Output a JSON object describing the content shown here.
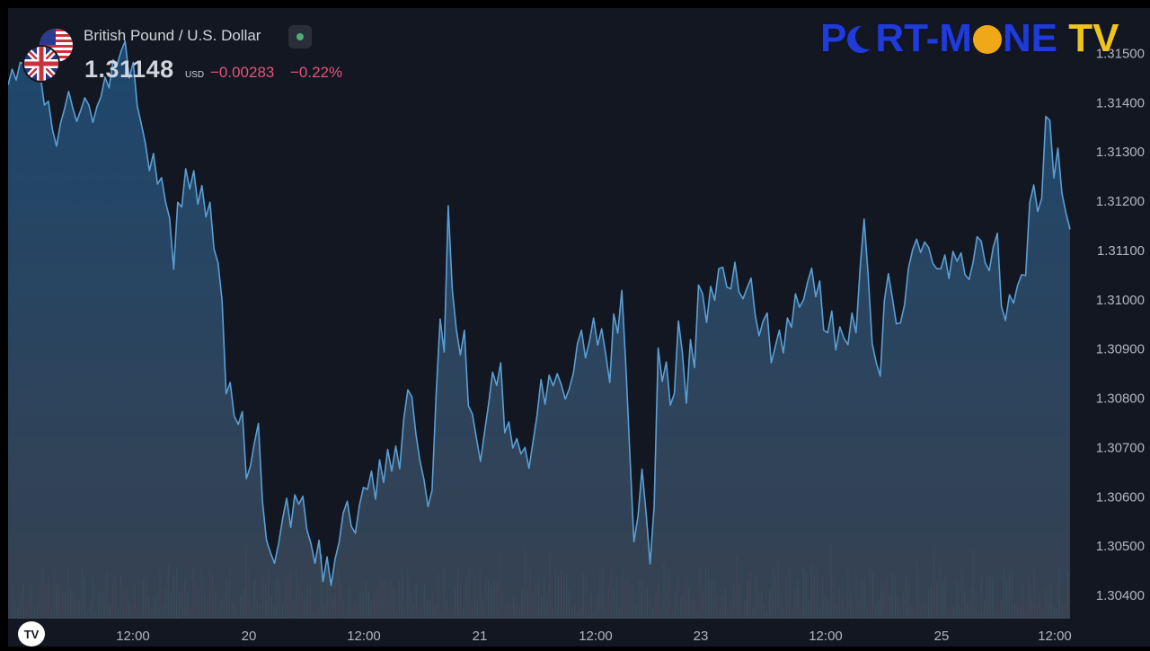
{
  "header": {
    "symbol_name": "British Pound / U.S. Dollar",
    "price": "1.31148",
    "currency": "USD",
    "change": "−0.00283",
    "change_pct": "−0.22%",
    "flags": [
      "us-flag-icon",
      "uk-flag-icon"
    ]
  },
  "brand": {
    "text_pre": "P",
    "text_mid": "RT-M",
    "text_post": "NE",
    "text_tv": "TV",
    "colors": {
      "main": "#1f3bd8",
      "accent": "#f0c418"
    }
  },
  "chart_data": {
    "type": "area",
    "title": "",
    "xlabel": "",
    "ylabel": "",
    "ylim": [
      1.303526,
      1.315921
    ],
    "y_ticks": [
      "1.31500",
      "1.31400",
      "1.31300",
      "1.31200",
      "1.31100",
      "1.31000",
      "1.30900",
      "1.30800",
      "1.30700",
      "1.30600",
      "1.30500",
      "1.30400"
    ],
    "x_ticks": [
      "12:00",
      "20",
      "12:00",
      "21",
      "12:00",
      "23",
      "12:00",
      "25",
      "12:00"
    ],
    "colors": {
      "line": "#5a9fd4",
      "fill_top": "#1e4a72",
      "volume_up": "#3d8f7a",
      "volume_down": "#a0445c"
    },
    "grid": false,
    "series": [
      {
        "values": [
          1.31436,
          1.31468,
          1.31446,
          1.31482,
          1.31478,
          1.31459,
          1.31475,
          1.31467,
          1.31454,
          1.31395,
          1.31403,
          1.31345,
          1.31312,
          1.31358,
          1.31388,
          1.31423,
          1.3139,
          1.31362,
          1.31385,
          1.3141,
          1.31395,
          1.3136,
          1.31392,
          1.31412,
          1.31452,
          1.3143,
          1.31487,
          1.31477,
          1.31505,
          1.31525,
          1.3145,
          1.31482,
          1.31393,
          1.31357,
          1.31318,
          1.31262,
          1.31297,
          1.31235,
          1.31248,
          1.31198,
          1.31166,
          1.31062,
          1.31198,
          1.31188,
          1.31266,
          1.31225,
          1.31262,
          1.31194,
          1.31232,
          1.31168,
          1.31198,
          1.31103,
          1.31075,
          1.30998,
          1.30809,
          1.30832,
          1.30764,
          1.30747,
          1.30773,
          1.30637,
          1.30662,
          1.3071,
          1.30749,
          1.30591,
          1.30512,
          1.30486,
          1.30465,
          1.30505,
          1.30556,
          1.30597,
          1.30538,
          1.30604,
          1.30585,
          1.30601,
          1.30533,
          1.30505,
          1.30465,
          1.30512,
          1.30428,
          1.30478,
          1.3042,
          1.30474,
          1.30508,
          1.30567,
          1.30591,
          1.3054,
          1.30526,
          1.30582,
          1.30619,
          1.30615,
          1.30652,
          1.30595,
          1.30675,
          1.30629,
          1.30696,
          1.30652,
          1.30703,
          1.30657,
          1.30758,
          1.30817,
          1.30803,
          1.30728,
          1.30673,
          1.30635,
          1.3058,
          1.30613,
          1.30805,
          1.30961,
          1.30894,
          1.31191,
          1.31021,
          1.3094,
          1.30888,
          1.30938,
          1.30785,
          1.30768,
          1.30719,
          1.30672,
          1.30731,
          1.30788,
          1.30853,
          1.30826,
          1.30872,
          1.3073,
          1.30752,
          1.30699,
          1.30718,
          1.30687,
          1.307,
          1.30658,
          1.30712,
          1.30766,
          1.30838,
          1.30788,
          1.30847,
          1.30825,
          1.3085,
          1.30828,
          1.30798,
          1.3082,
          1.30851,
          1.30911,
          1.30938,
          1.30882,
          1.30917,
          1.30963,
          1.30908,
          1.30941,
          1.3089,
          1.30832,
          1.30971,
          1.30932,
          1.31019,
          1.30866,
          1.30685,
          1.30509,
          1.3056,
          1.30656,
          1.30568,
          1.30464,
          1.30581,
          1.30902,
          1.30834,
          1.30874,
          1.30786,
          1.3081,
          1.30957,
          1.30893,
          1.3079,
          1.30919,
          1.30862,
          1.3103,
          1.31012,
          1.30954,
          1.31027,
          1.30999,
          1.31063,
          1.31066,
          1.31026,
          1.31022,
          1.31076,
          1.31016,
          1.31002,
          1.31024,
          1.31044,
          1.30971,
          1.30927,
          1.30957,
          1.30973,
          1.30872,
          1.30905,
          1.30938,
          1.30892,
          1.30963,
          1.30944,
          1.31012,
          1.30985,
          1.31,
          1.31036,
          1.31064,
          1.31006,
          1.31038,
          1.30938,
          1.30933,
          1.30977,
          1.30898,
          1.30945,
          1.30922,
          1.30909,
          1.30973,
          1.30933,
          1.31063,
          1.31164,
          1.3105,
          1.30911,
          1.30872,
          1.30845,
          1.30998,
          1.31053,
          1.31003,
          1.30951,
          1.30953,
          1.30989,
          1.31064,
          1.31101,
          1.31123,
          1.31096,
          1.31117,
          1.31106,
          1.31074,
          1.31063,
          1.31063,
          1.31091,
          1.31043,
          1.31098,
          1.31078,
          1.31095,
          1.31051,
          1.31041,
          1.31076,
          1.31128,
          1.31119,
          1.31075,
          1.31059,
          1.31107,
          1.31135,
          1.30987,
          1.30958,
          1.3101,
          1.30993,
          1.31029,
          1.31051,
          1.31049,
          1.31197,
          1.31233,
          1.31179,
          1.31206,
          1.31372,
          1.31364,
          1.31247,
          1.31308,
          1.31216,
          1.31176,
          1.31143
        ]
      }
    ]
  },
  "toolbar": {
    "logo_icon": "tradingview-logo-icon"
  }
}
